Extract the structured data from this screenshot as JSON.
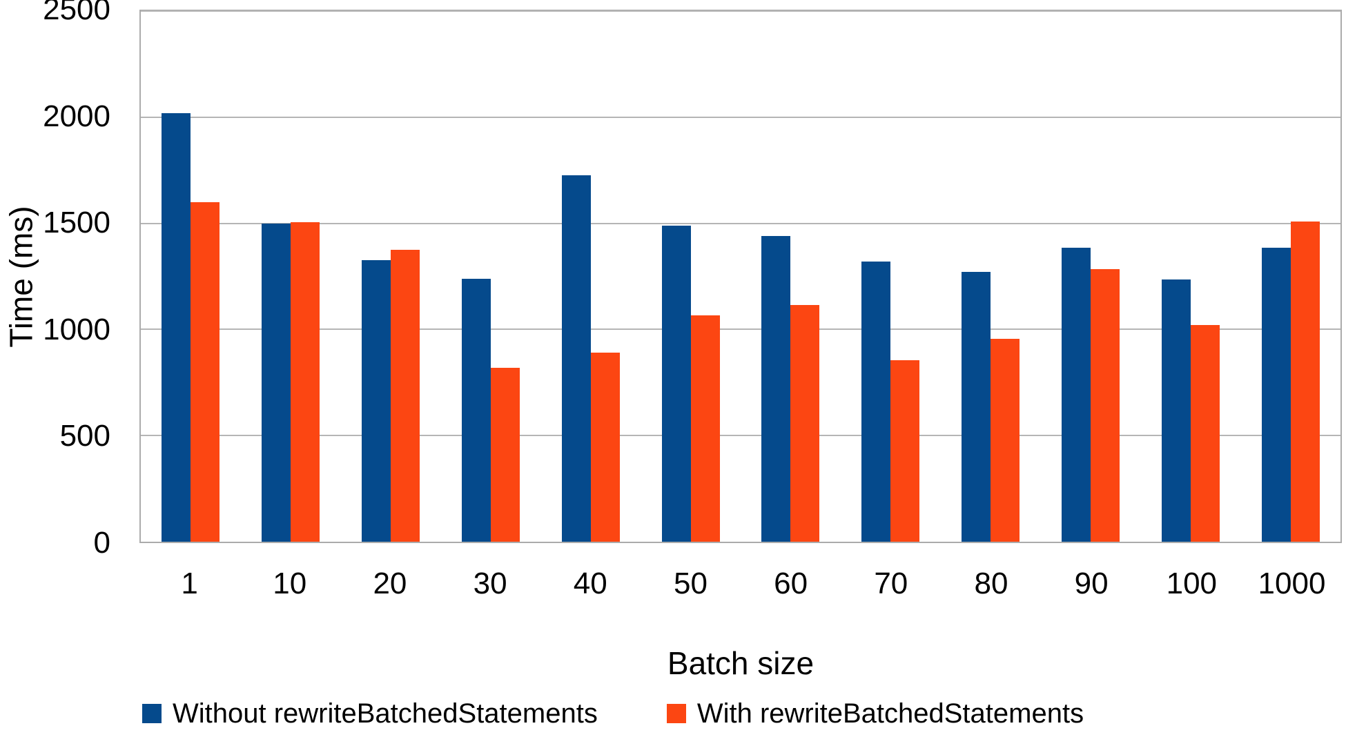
{
  "chart_data": {
    "type": "bar",
    "title": "",
    "xlabel": "Batch size",
    "ylabel": "Time (ms)",
    "categories": [
      "1",
      "10",
      "20",
      "30",
      "40",
      "50",
      "60",
      "70",
      "80",
      "90",
      "100",
      "1000"
    ],
    "series": [
      {
        "name": "Without rewriteBatchedStatements",
        "color": "#054A8C",
        "values": [
          2020,
          1500,
          1325,
          1240,
          1725,
          1490,
          1440,
          1320,
          1270,
          1385,
          1235,
          1385
        ]
      },
      {
        "name": "With rewriteBatchedStatements",
        "color": "#FC4612",
        "values": [
          1600,
          1505,
          1375,
          820,
          890,
          1065,
          1115,
          855,
          955,
          1285,
          1020,
          1510
        ]
      }
    ],
    "ylim": [
      0,
      2500
    ],
    "yticks": [
      0,
      500,
      1000,
      1500,
      2000,
      2500
    ],
    "grid": "horizontal",
    "legend_position": "bottom"
  },
  "styles": {
    "grid_color": "#B5B5B5",
    "axis_color": "#ABABAB",
    "text_color": "#000000",
    "background": "#FFFFFF"
  }
}
